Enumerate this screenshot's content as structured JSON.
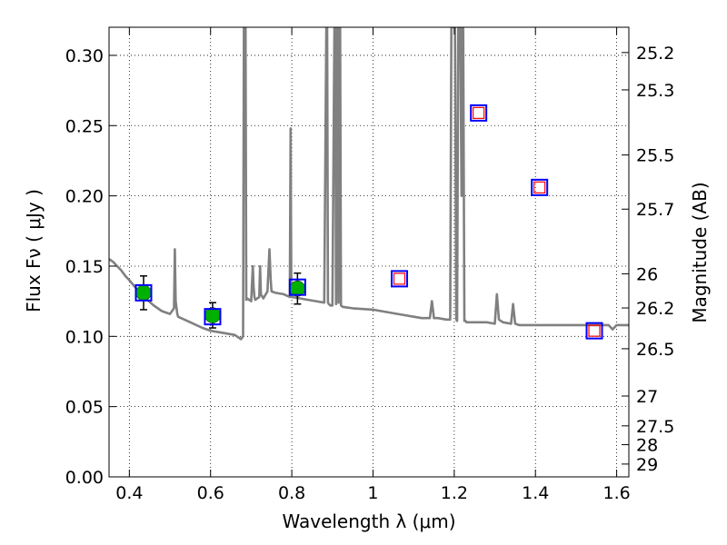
{
  "chart_data": {
    "type": "scatter",
    "xlabel": "Wavelength  λ (μm)",
    "ylabel": "Flux  Fν ( μJy )",
    "right_ylabel": "Magnitude (AB)",
    "xlim": [
      0.35,
      1.63
    ],
    "ylim": [
      0.0,
      0.32
    ],
    "grid": true,
    "x_ticks": [
      0.4,
      0.6,
      0.8,
      1.0,
      1.2,
      1.4,
      1.6
    ],
    "x_tick_labels": [
      "0.4",
      "0.6",
      "0.8",
      "1",
      "1.2",
      "1.4",
      "1.6"
    ],
    "y_ticks": [
      0.0,
      0.05,
      0.1,
      0.15,
      0.2,
      0.25,
      0.3
    ],
    "y_tick_labels": [
      "0.00",
      "0.05",
      "0.10",
      "0.15",
      "0.20",
      "0.25",
      "0.30"
    ],
    "right_ticks": [
      {
        "mag": 25.2,
        "label": "25.2"
      },
      {
        "mag": 25.3,
        "label": "25.3"
      },
      {
        "mag": 25.5,
        "label": "25.5"
      },
      {
        "mag": 25.7,
        "label": "25.7"
      },
      {
        "mag": 26.0,
        "label": "26"
      },
      {
        "mag": 26.2,
        "label": "26.2"
      },
      {
        "mag": 26.5,
        "label": "26.5"
      },
      {
        "mag": 27.0,
        "label": "27"
      },
      {
        "mag": 27.5,
        "label": "27.5"
      },
      {
        "mag": 28.0,
        "label": "28"
      },
      {
        "mag": 29.0,
        "label": "29"
      }
    ],
    "colors": {
      "model": "#808080",
      "observed": "#00b000",
      "model_box": "#0000ff",
      "predicted": "#ff0000"
    },
    "model_spectrum": {
      "x": [
        0.35,
        0.36,
        0.37,
        0.38,
        0.39,
        0.4,
        0.42,
        0.44,
        0.46,
        0.48,
        0.5,
        0.51,
        0.512,
        0.514,
        0.518,
        0.52,
        0.55,
        0.58,
        0.6,
        0.62,
        0.64,
        0.66,
        0.67,
        0.675,
        0.68,
        0.682,
        0.684,
        0.686,
        0.688,
        0.69,
        0.7,
        0.704,
        0.706,
        0.708,
        0.71,
        0.72,
        0.722,
        0.724,
        0.73,
        0.74,
        0.745,
        0.748,
        0.75,
        0.76,
        0.78,
        0.795,
        0.797,
        0.799,
        0.8,
        0.82,
        0.84,
        0.86,
        0.88,
        0.885,
        0.887,
        0.889,
        0.891,
        0.895,
        0.9,
        0.905,
        0.907,
        0.909,
        0.911,
        0.913,
        0.915,
        0.917,
        0.919,
        0.921,
        0.925,
        0.95,
        1.0,
        1.02,
        1.04,
        1.06,
        1.08,
        1.1,
        1.12,
        1.14,
        1.145,
        1.15,
        1.16,
        1.18,
        1.19,
        1.193,
        1.196,
        1.2,
        1.202,
        1.205,
        1.207,
        1.21,
        1.212,
        1.215,
        1.218,
        1.22,
        1.222,
        1.225,
        1.228,
        1.23,
        1.24,
        1.25,
        1.26,
        1.28,
        1.3,
        1.305,
        1.31,
        1.32,
        1.34,
        1.345,
        1.35,
        1.36,
        1.38,
        1.4,
        1.42,
        1.44,
        1.46,
        1.48,
        1.5,
        1.52,
        1.54,
        1.56,
        1.57,
        1.58,
        1.59,
        1.6,
        1.62,
        1.63
      ],
      "y": [
        0.155,
        0.153,
        0.15,
        0.147,
        0.143,
        0.14,
        0.133,
        0.127,
        0.122,
        0.118,
        0.116,
        0.12,
        0.162,
        0.125,
        0.116,
        0.114,
        0.11,
        0.106,
        0.104,
        0.103,
        0.102,
        0.101,
        0.099,
        0.098,
        0.1,
        0.32,
        0.32,
        0.32,
        0.126,
        0.127,
        0.125,
        0.15,
        0.135,
        0.128,
        0.126,
        0.128,
        0.15,
        0.13,
        0.127,
        0.132,
        0.162,
        0.14,
        0.132,
        0.131,
        0.13,
        0.128,
        0.248,
        0.13,
        0.128,
        0.127,
        0.126,
        0.125,
        0.124,
        0.32,
        0.32,
        0.124,
        0.123,
        0.122,
        0.122,
        0.32,
        0.32,
        0.123,
        0.32,
        0.32,
        0.124,
        0.32,
        0.32,
        0.122,
        0.121,
        0.12,
        0.119,
        0.118,
        0.117,
        0.116,
        0.115,
        0.114,
        0.113,
        0.113,
        0.125,
        0.113,
        0.113,
        0.112,
        0.112,
        0.32,
        0.32,
        0.32,
        0.32,
        0.112,
        0.111,
        0.32,
        0.32,
        0.32,
        0.2,
        0.32,
        0.32,
        0.111,
        0.111,
        0.11,
        0.11,
        0.11,
        0.11,
        0.11,
        0.109,
        0.13,
        0.112,
        0.11,
        0.109,
        0.123,
        0.109,
        0.108,
        0.108,
        0.108,
        0.108,
        0.108,
        0.108,
        0.108,
        0.108,
        0.108,
        0.108,
        0.108,
        0.108,
        0.108,
        0.105,
        0.108,
        0.108,
        0.108
      ]
    },
    "observed": {
      "x": [
        0.435,
        0.605,
        0.814
      ],
      "y": [
        0.131,
        0.115,
        0.134
      ],
      "err": [
        0.012,
        0.009,
        0.011
      ]
    },
    "model_photometry": {
      "x": [
        0.435,
        0.605,
        0.814,
        1.065,
        1.26,
        1.41,
        1.545
      ],
      "y": [
        0.131,
        0.114,
        0.135,
        0.141,
        0.259,
        0.206,
        0.104
      ]
    },
    "predicted": {
      "x": [
        1.065,
        1.26,
        1.41,
        1.545
      ],
      "y": [
        0.141,
        0.259,
        0.206,
        0.104
      ]
    }
  }
}
